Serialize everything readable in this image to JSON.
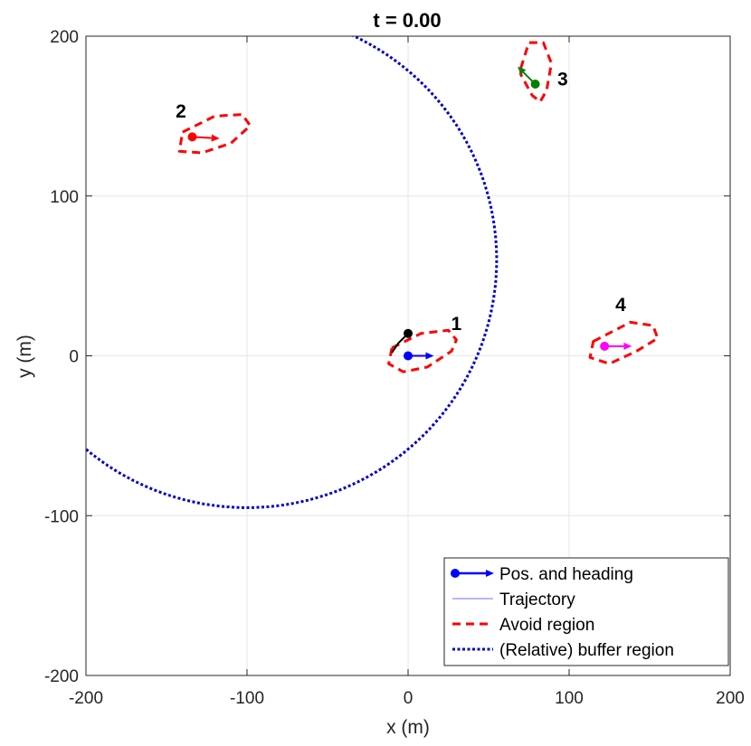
{
  "chart_data": {
    "type": "scatter",
    "title": "t = 0.00",
    "xlabel": "x (m)",
    "ylabel": "y (m)",
    "xlim": [
      -200,
      200
    ],
    "ylim": [
      -200,
      200
    ],
    "xticks": [
      -200,
      -100,
      0,
      100,
      200
    ],
    "yticks": [
      -200,
      -100,
      0,
      100,
      200
    ],
    "xtick_labels": [
      "-200",
      "-100",
      "0",
      "100",
      "200"
    ],
    "ytick_labels": [
      "-200",
      "-100",
      "0",
      "100",
      "200"
    ],
    "grid": true,
    "legend_position": "bottom-right",
    "legend": [
      {
        "label": "Pos. and heading",
        "style": "marker-arrow",
        "color": "#0000ff"
      },
      {
        "label": "Trajectory",
        "style": "thin-line",
        "color": "#6f6fff"
      },
      {
        "label": "Avoid region",
        "style": "dashed",
        "color": "#ff0000"
      },
      {
        "label": "(Relative) buffer region",
        "style": "dotted",
        "color": "#0000cc"
      }
    ],
    "vehicles": [
      {
        "label": "1",
        "x": 0,
        "y": 0,
        "heading_dx": 16,
        "heading_dy": 0,
        "color": "#0000ff",
        "label_x": 30,
        "label_y": 20
      },
      {
        "label": "2",
        "x": -134,
        "y": 137,
        "heading_dx": 17,
        "heading_dy": -1,
        "color": "#ff0000",
        "label_x": -141,
        "label_y": 153
      },
      {
        "label": "3",
        "x": 79,
        "y": 170,
        "heading_dx": -11,
        "heading_dy": 11,
        "color": "#008000",
        "label_x": 96,
        "label_y": 173
      },
      {
        "label": "4",
        "x": 122,
        "y": 6,
        "heading_dx": 17,
        "heading_dy": 0,
        "color": "#ff00ff",
        "label_x": 132,
        "label_y": 32
      }
    ],
    "avoid_regions": [
      [
        [
          -10,
          5
        ],
        [
          8,
          14
        ],
        [
          25,
          16
        ],
        [
          30,
          10
        ],
        [
          27,
          3
        ],
        [
          12,
          -7
        ],
        [
          -3,
          -10
        ],
        [
          -12,
          -5
        ],
        [
          -10,
          5
        ]
      ],
      [
        [
          -140,
          140
        ],
        [
          -120,
          150
        ],
        [
          -103,
          151
        ],
        [
          -98,
          144
        ],
        [
          -110,
          133
        ],
        [
          -128,
          127
        ],
        [
          -142,
          128
        ],
        [
          -140,
          140
        ]
      ],
      [
        [
          70,
          180
        ],
        [
          75,
          196
        ],
        [
          84,
          196
        ],
        [
          89,
          183
        ],
        [
          86,
          166
        ],
        [
          82,
          159
        ],
        [
          77,
          163
        ],
        [
          70,
          176
        ],
        [
          70,
          180
        ]
      ],
      [
        [
          115,
          9
        ],
        [
          138,
          21
        ],
        [
          152,
          19
        ],
        [
          155,
          11
        ],
        [
          142,
          3
        ],
        [
          125,
          -5
        ],
        [
          113,
          -1
        ],
        [
          115,
          9
        ]
      ]
    ],
    "trajectory": {
      "color": "#000000",
      "points": [
        [
          -10,
          2
        ],
        [
          -6,
          8
        ],
        [
          0,
          14
        ]
      ],
      "end_marker": [
        0,
        14
      ]
    },
    "buffer_region": {
      "center": [
        -100,
        60
      ],
      "radius": 155,
      "angle_start_deg": -168,
      "angle_end_deg": 81,
      "color": "#0000cc"
    }
  }
}
